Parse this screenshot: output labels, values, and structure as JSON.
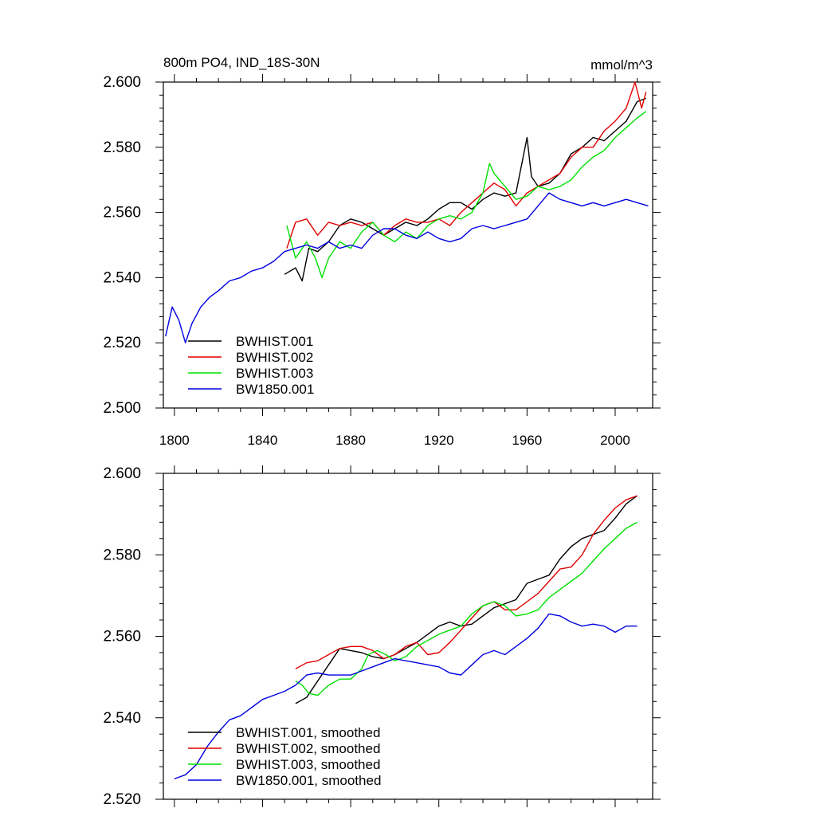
{
  "chart_data": [
    {
      "type": "line",
      "title": "800m PO4, IND_18S-30N",
      "units": "mmol/m^3",
      "xlim": [
        1795,
        2017
      ],
      "ylim": [
        2.5,
        2.6
      ],
      "xticks": [
        1800,
        1840,
        1880,
        1920,
        1960,
        2000
      ],
      "xtick_labels": [
        "1800",
        "1840",
        "1880",
        "1920",
        "1960",
        "2000"
      ],
      "yticks": [
        2.5,
        2.52,
        2.54,
        2.56,
        2.58,
        2.6
      ],
      "ytick_labels": [
        "2.500",
        "2.520",
        "2.540",
        "2.560",
        "2.580",
        "2.600"
      ],
      "legend_position": "lower-left",
      "series": [
        {
          "name": "BWHIST.001",
          "color": "#000000",
          "x": [
            1850,
            1855,
            1858,
            1861,
            1865,
            1870,
            1875,
            1880,
            1885,
            1890,
            1895,
            1900,
            1905,
            1910,
            1915,
            1920,
            1925,
            1930,
            1935,
            1940,
            1945,
            1950,
            1955,
            1960,
            1962,
            1965,
            1970,
            1975,
            1980,
            1985,
            1990,
            1995,
            2000,
            2005,
            2010,
            2014
          ],
          "y": [
            2.541,
            2.543,
            2.539,
            2.549,
            2.548,
            2.551,
            2.556,
            2.558,
            2.557,
            2.555,
            2.553,
            2.555,
            2.557,
            2.556,
            2.558,
            2.561,
            2.563,
            2.563,
            2.561,
            2.564,
            2.566,
            2.565,
            2.566,
            2.583,
            2.571,
            2.568,
            2.569,
            2.572,
            2.578,
            2.58,
            2.583,
            2.582,
            2.585,
            2.588,
            2.594,
            2.595
          ]
        },
        {
          "name": "BWHIST.002",
          "color": "#e00000",
          "x": [
            1851,
            1855,
            1860,
            1865,
            1870,
            1875,
            1880,
            1885,
            1890,
            1895,
            1900,
            1905,
            1910,
            1915,
            1920,
            1925,
            1930,
            1935,
            1940,
            1945,
            1950,
            1955,
            1960,
            1965,
            1970,
            1975,
            1980,
            1985,
            1990,
            1995,
            2000,
            2005,
            2009,
            2012,
            2014
          ],
          "y": [
            2.549,
            2.557,
            2.558,
            2.553,
            2.557,
            2.556,
            2.557,
            2.556,
            2.557,
            2.553,
            2.556,
            2.558,
            2.557,
            2.557,
            2.558,
            2.556,
            2.56,
            2.563,
            2.566,
            2.569,
            2.567,
            2.562,
            2.566,
            2.568,
            2.57,
            2.572,
            2.577,
            2.58,
            2.58,
            2.585,
            2.588,
            2.592,
            2.6,
            2.592,
            2.597
          ]
        },
        {
          "name": "BWHIST.003",
          "color": "#00e000",
          "x": [
            1851,
            1855,
            1860,
            1864,
            1867,
            1870,
            1875,
            1880,
            1885,
            1890,
            1895,
            1900,
            1905,
            1910,
            1915,
            1920,
            1925,
            1930,
            1935,
            1940,
            1943,
            1945,
            1950,
            1955,
            1960,
            1965,
            1970,
            1975,
            1980,
            1985,
            1990,
            1995,
            2000,
            2005,
            2010,
            2014
          ],
          "y": [
            2.556,
            2.546,
            2.551,
            2.546,
            2.54,
            2.546,
            2.551,
            2.549,
            2.554,
            2.557,
            2.553,
            2.551,
            2.554,
            2.552,
            2.556,
            2.558,
            2.559,
            2.558,
            2.56,
            2.566,
            2.575,
            2.572,
            2.568,
            2.564,
            2.565,
            2.568,
            2.567,
            2.568,
            2.57,
            2.574,
            2.577,
            2.579,
            2.583,
            2.586,
            2.589,
            2.591
          ]
        },
        {
          "name": "BW1850.001",
          "color": "#0000e0",
          "x": [
            1796,
            1799,
            1802,
            1805,
            1808,
            1812,
            1816,
            1820,
            1825,
            1830,
            1835,
            1840,
            1845,
            1850,
            1855,
            1860,
            1865,
            1870,
            1875,
            1880,
            1885,
            1890,
            1895,
            1900,
            1905,
            1910,
            1915,
            1920,
            1925,
            1930,
            1935,
            1940,
            1945,
            1950,
            1955,
            1960,
            1965,
            1970,
            1975,
            1980,
            1985,
            1990,
            1995,
            2000,
            2005,
            2010,
            2015
          ],
          "y": [
            2.522,
            2.531,
            2.527,
            2.52,
            2.526,
            2.531,
            2.534,
            2.536,
            2.539,
            2.54,
            2.542,
            2.543,
            2.545,
            2.548,
            2.549,
            2.55,
            2.549,
            2.551,
            2.549,
            2.55,
            2.549,
            2.553,
            2.555,
            2.555,
            2.553,
            2.552,
            2.554,
            2.552,
            2.551,
            2.552,
            2.555,
            2.556,
            2.555,
            2.556,
            2.557,
            2.558,
            2.562,
            2.566,
            2.564,
            2.563,
            2.562,
            2.563,
            2.562,
            2.563,
            2.564,
            2.563,
            2.562
          ]
        }
      ]
    },
    {
      "type": "line",
      "title": "",
      "units": "",
      "xlim": [
        1795,
        2017
      ],
      "ylim": [
        2.52,
        2.6
      ],
      "xticks": [
        1800,
        1840,
        1880,
        1920,
        1960,
        2000
      ],
      "xtick_labels": [],
      "yticks": [
        2.52,
        2.54,
        2.56,
        2.58,
        2.6
      ],
      "ytick_labels": [
        "2.520",
        "2.540",
        "2.560",
        "2.580",
        "2.600"
      ],
      "legend_position": "lower-left",
      "series": [
        {
          "name": "BWHIST.001, smoothed",
          "color": "#000000",
          "x": [
            1855,
            1860,
            1865,
            1870,
            1875,
            1880,
            1885,
            1890,
            1895,
            1900,
            1905,
            1910,
            1915,
            1920,
            1925,
            1930,
            1935,
            1940,
            1945,
            1950,
            1955,
            1960,
            1965,
            1970,
            1975,
            1980,
            1985,
            1990,
            1995,
            2000,
            2005,
            2010
          ],
          "y": [
            2.5435,
            2.545,
            2.549,
            2.553,
            2.557,
            2.5565,
            2.556,
            2.555,
            2.5545,
            2.5555,
            2.557,
            2.5585,
            2.5605,
            2.5625,
            2.5635,
            2.5625,
            2.563,
            2.565,
            2.567,
            2.568,
            2.569,
            2.573,
            2.574,
            2.575,
            2.579,
            2.582,
            2.584,
            2.585,
            2.586,
            2.589,
            2.5925,
            2.5945
          ]
        },
        {
          "name": "BWHIST.002, smoothed",
          "color": "#e00000",
          "x": [
            1855,
            1860,
            1865,
            1870,
            1875,
            1880,
            1885,
            1890,
            1895,
            1900,
            1905,
            1910,
            1915,
            1920,
            1925,
            1930,
            1935,
            1940,
            1945,
            1950,
            1955,
            1960,
            1965,
            1970,
            1975,
            1980,
            1985,
            1990,
            1995,
            2000,
            2005,
            2010
          ],
          "y": [
            2.552,
            2.5535,
            2.554,
            2.5555,
            2.557,
            2.5575,
            2.5575,
            2.5565,
            2.5545,
            2.5555,
            2.5575,
            2.5585,
            2.5555,
            2.556,
            2.5585,
            2.5615,
            2.5645,
            2.5675,
            2.5685,
            2.5665,
            2.5665,
            2.5685,
            2.5705,
            2.5735,
            2.5765,
            2.577,
            2.58,
            2.585,
            2.5885,
            2.5915,
            2.5935,
            2.5945
          ]
        },
        {
          "name": "BWHIST.003, smoothed",
          "color": "#00e000",
          "x": [
            1855,
            1858,
            1861,
            1865,
            1870,
            1875,
            1880,
            1885,
            1888,
            1892,
            1896,
            1900,
            1905,
            1910,
            1915,
            1920,
            1925,
            1930,
            1935,
            1940,
            1945,
            1950,
            1955,
            1960,
            1965,
            1970,
            1975,
            1980,
            1985,
            1990,
            1995,
            2000,
            2005,
            2010
          ],
          "y": [
            2.549,
            2.548,
            2.546,
            2.5455,
            2.548,
            2.5495,
            2.5495,
            2.552,
            2.5555,
            2.5565,
            2.5555,
            2.554,
            2.555,
            2.5575,
            2.559,
            2.5605,
            2.5615,
            2.5625,
            2.5655,
            2.5675,
            2.5685,
            2.5675,
            2.565,
            2.5655,
            2.5665,
            2.5695,
            2.5715,
            2.5735,
            2.5755,
            2.5785,
            2.5815,
            2.584,
            2.5865,
            2.588
          ]
        },
        {
          "name": "BW1850.001, smoothed",
          "color": "#0000e0",
          "x": [
            1800,
            1805,
            1810,
            1815,
            1820,
            1825,
            1830,
            1835,
            1840,
            1845,
            1850,
            1855,
            1860,
            1865,
            1870,
            1875,
            1880,
            1885,
            1890,
            1895,
            1900,
            1905,
            1910,
            1915,
            1920,
            1925,
            1930,
            1935,
            1940,
            1945,
            1950,
            1955,
            1960,
            1965,
            1970,
            1975,
            1980,
            1985,
            1990,
            1995,
            2000,
            2005,
            2010
          ],
          "y": [
            2.525,
            2.526,
            2.5285,
            2.533,
            2.5365,
            2.5395,
            2.5405,
            2.5425,
            2.5445,
            2.5455,
            2.5465,
            2.548,
            2.5505,
            2.551,
            2.5505,
            2.5505,
            2.5505,
            2.5515,
            2.5525,
            2.5535,
            2.5545,
            2.554,
            2.5535,
            2.553,
            2.5525,
            2.551,
            2.5505,
            2.553,
            2.5555,
            2.5565,
            2.5555,
            2.5575,
            2.5595,
            2.562,
            2.5655,
            2.565,
            2.5635,
            2.5625,
            2.563,
            2.5625,
            2.561,
            2.5625,
            2.5625
          ]
        }
      ]
    }
  ]
}
